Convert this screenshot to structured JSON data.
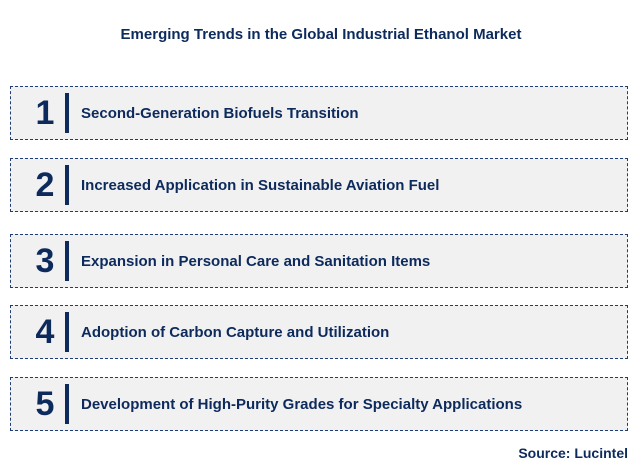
{
  "title": "Emerging Trends in the Global Industrial Ethanol Market",
  "items": [
    {
      "num": "1",
      "label": "Second-Generation Biofuels Transition"
    },
    {
      "num": "2",
      "label": "Increased Application in Sustainable Aviation Fuel"
    },
    {
      "num": "3",
      "label": "Expansion in Personal Care and Sanitation Items"
    },
    {
      "num": "4",
      "label": "Adoption of Carbon Capture and Utilization"
    },
    {
      "num": "5",
      "label": "Development of High-Purity Grades for Specialty Applications"
    }
  ],
  "source": "Source: Lucintel"
}
